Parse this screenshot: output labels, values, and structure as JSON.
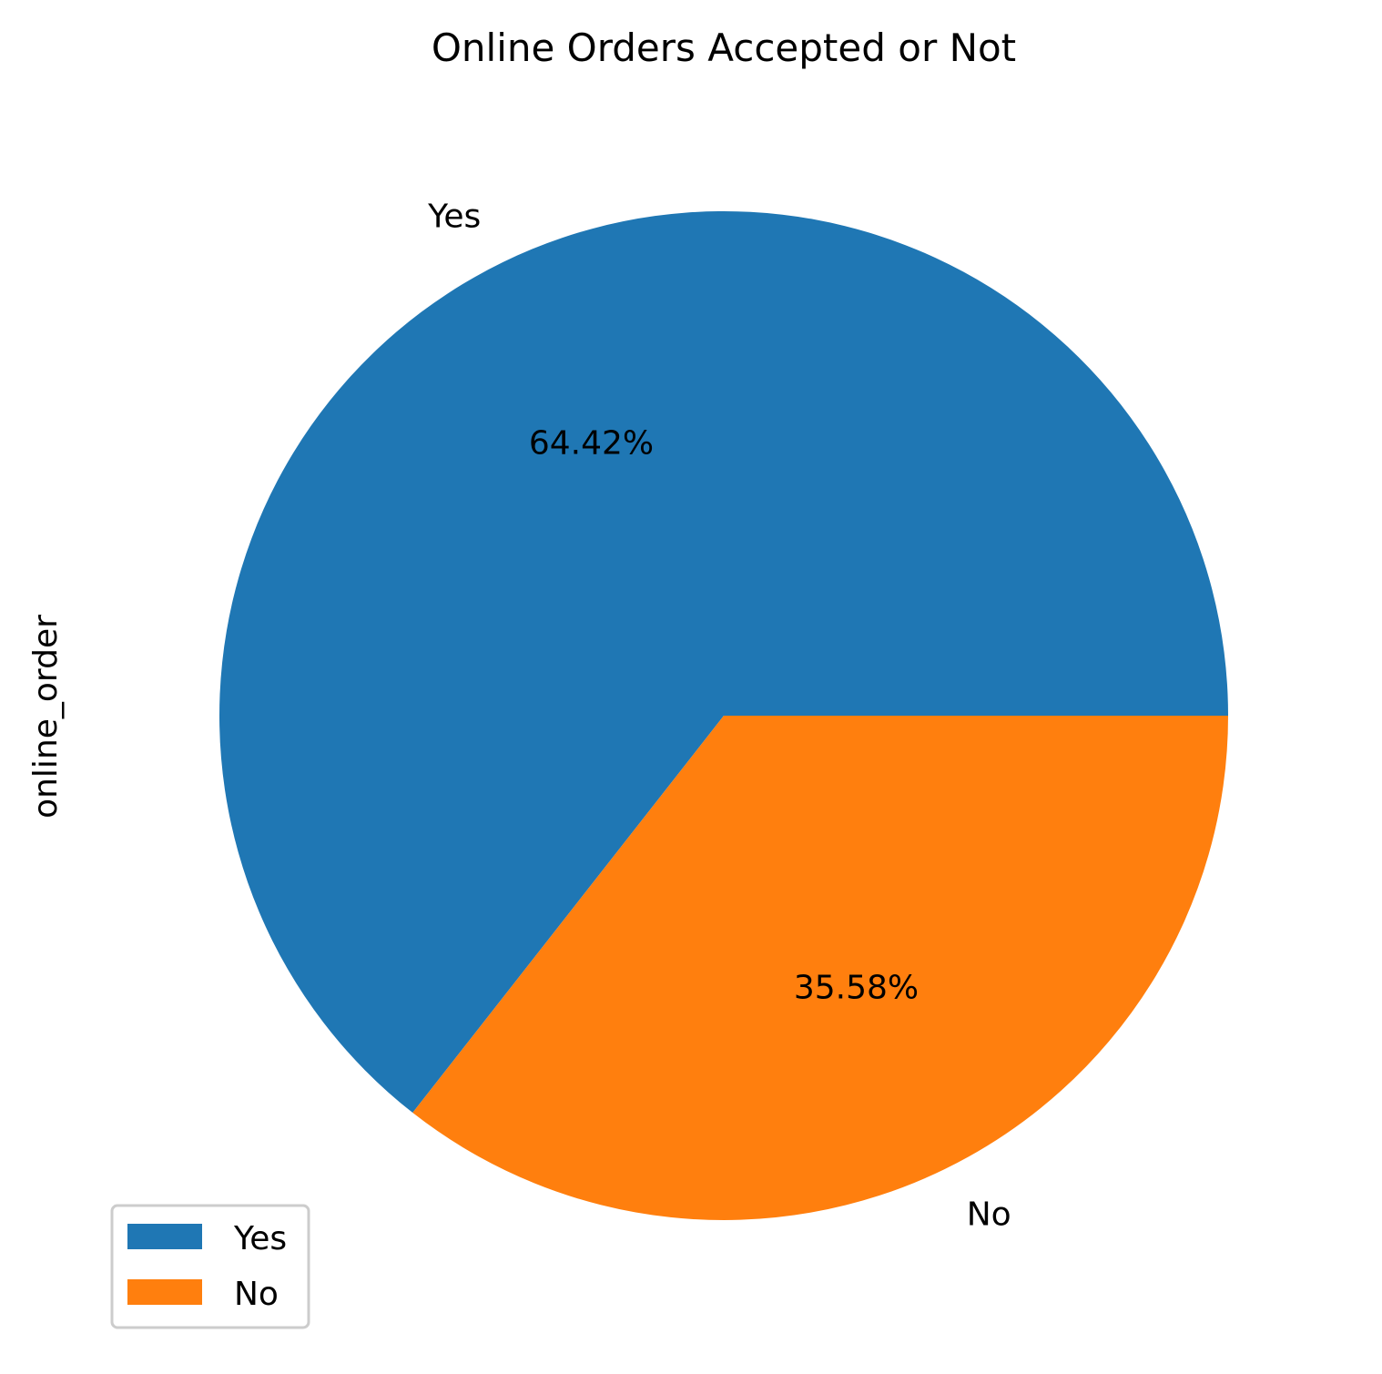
{
  "chart_data": {
    "type": "pie",
    "title": "Online Orders Accepted or Not",
    "ylabel": "online_order",
    "categories": [
      "Yes",
      "No"
    ],
    "values": [
      64.42,
      35.58
    ],
    "percent_labels": [
      "64.42%",
      "35.58%"
    ],
    "colors": [
      "#1f77b4",
      "#ff7f0e"
    ],
    "start_angle_deg": 0,
    "direction": "counterclockwise",
    "legend": {
      "position": "lower-left",
      "entries": [
        "Yes",
        "No"
      ]
    }
  }
}
